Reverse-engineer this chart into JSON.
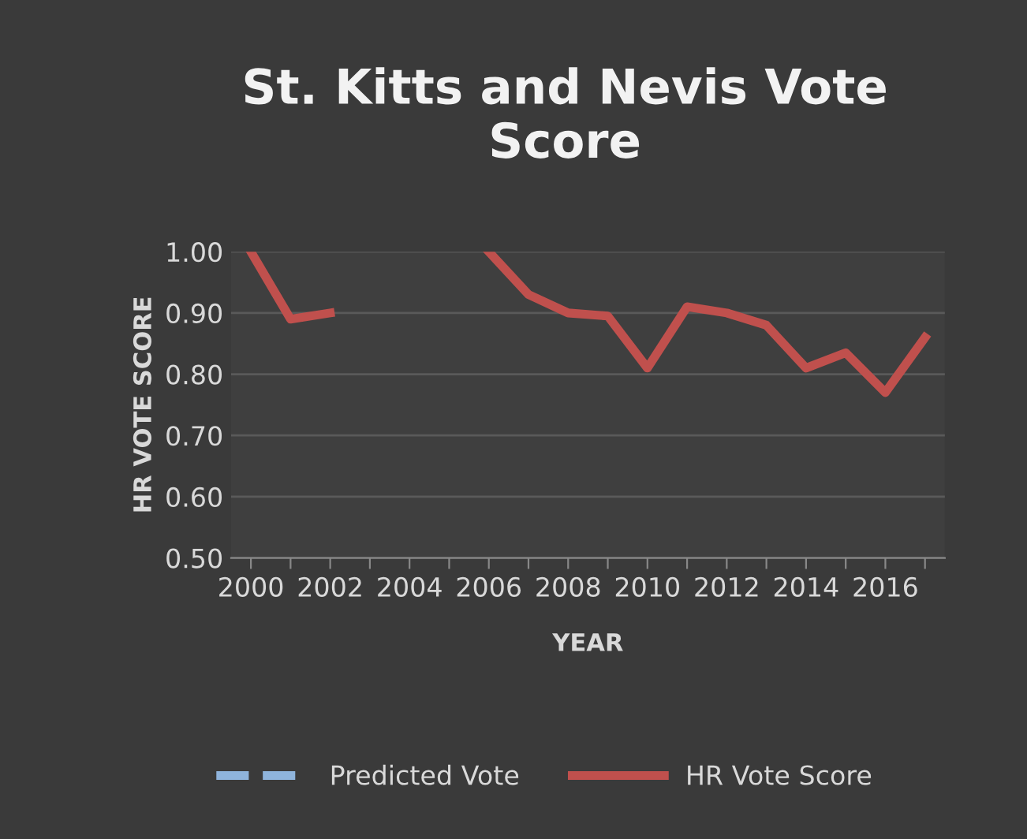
{
  "chart_data": {
    "type": "line",
    "title": "St. Kitts and Nevis Vote Score",
    "xlabel": "YEAR",
    "ylabel": "HR VOTE SCORE",
    "categories": [
      "2000",
      null,
      "2002",
      null,
      "2004",
      null,
      "2006",
      null,
      "2008",
      null,
      "2010",
      null,
      "2012",
      null,
      "2014",
      null,
      "2016",
      null
    ],
    "series": [
      {
        "name": "Predicted Vote",
        "color": "#8fb4dc",
        "line_style": "dashed",
        "values": [
          null,
          null,
          null,
          null,
          null,
          null,
          null,
          null,
          null,
          null,
          null,
          null,
          null,
          null,
          null,
          null,
          null,
          null
        ]
      },
      {
        "name": "HR Vote Score",
        "color": "#c0504d",
        "line_style": "solid",
        "values": [
          1.0,
          0.89,
          0.9,
          null,
          null,
          null,
          1.0,
          0.93,
          0.9,
          0.895,
          0.81,
          0.91,
          0.9,
          0.88,
          0.81,
          0.835,
          0.77,
          0.86
        ]
      }
    ],
    "ylim": [
      0.5,
      1.0
    ],
    "yticks": [
      {
        "value": 0.5,
        "label": "0.50"
      },
      {
        "value": 0.6,
        "label": "0.60"
      },
      {
        "value": 0.7,
        "label": "0.70"
      },
      {
        "value": 0.8,
        "label": "0.80"
      },
      {
        "value": 0.9,
        "label": "0.90"
      },
      {
        "value": 1.0,
        "label": "1.00"
      }
    ],
    "grid": "y",
    "legend": "bottom",
    "marker": "none"
  }
}
